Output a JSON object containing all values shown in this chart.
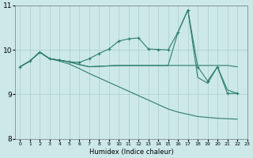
{
  "xlabel": "Humidex (Indice chaleur)",
  "background_color": "#cce8e8",
  "grid_color": "#aacfcf",
  "line_color": "#2e7d6e",
  "xlim": [
    -0.5,
    23
  ],
  "ylim": [
    8,
    11
  ],
  "yticks": [
    8,
    9,
    10,
    11
  ],
  "xticks": [
    0,
    1,
    2,
    3,
    4,
    5,
    6,
    7,
    8,
    9,
    10,
    11,
    12,
    13,
    14,
    15,
    16,
    17,
    18,
    19,
    20,
    21,
    22,
    23
  ],
  "line_a_x": [
    0,
    1,
    2,
    3,
    4,
    5,
    6,
    7,
    8,
    9,
    10,
    11,
    12,
    13,
    14,
    15,
    16,
    17,
    18,
    19,
    20,
    21,
    22
  ],
  "line_a_y": [
    9.62,
    9.75,
    9.95,
    9.8,
    9.77,
    9.73,
    9.72,
    9.8,
    9.92,
    10.02,
    10.2,
    10.25,
    10.27,
    10.02,
    10.01,
    10.0,
    10.4,
    10.9,
    9.62,
    9.3,
    9.62,
    9.02,
    9.02
  ],
  "line_b_x": [
    0,
    1,
    2,
    3,
    4,
    5,
    6,
    7,
    8,
    9,
    10,
    11,
    12,
    13,
    14,
    15,
    16,
    17,
    18,
    19,
    20,
    21,
    22
  ],
  "line_b_y": [
    9.62,
    9.75,
    9.95,
    9.8,
    9.77,
    9.73,
    9.67,
    9.62,
    9.63,
    9.64,
    9.65,
    9.65,
    9.65,
    9.65,
    9.65,
    9.65,
    9.65,
    9.65,
    9.65,
    9.65,
    9.65,
    9.65,
    9.62
  ],
  "line_c_x": [
    0,
    1,
    2,
    3,
    4,
    5,
    6,
    7,
    8,
    9,
    10,
    11,
    12,
    13,
    14,
    15,
    16,
    17,
    18,
    19,
    20,
    21,
    22
  ],
  "line_c_y": [
    9.62,
    9.75,
    9.95,
    9.8,
    9.75,
    9.68,
    9.58,
    9.47,
    9.37,
    9.27,
    9.17,
    9.07,
    8.97,
    8.87,
    8.77,
    8.67,
    8.6,
    8.55,
    8.5,
    8.48,
    8.46,
    8.45,
    8.44
  ],
  "line_d_x": [
    0,
    1,
    2,
    3,
    4,
    5,
    6,
    7,
    8,
    9,
    10,
    11,
    12,
    13,
    14,
    15,
    16,
    17,
    18,
    19,
    20,
    21,
    22
  ],
  "line_d_y": [
    9.62,
    9.75,
    9.95,
    9.8,
    9.77,
    9.73,
    9.67,
    9.62,
    9.63,
    9.64,
    9.65,
    9.65,
    9.65,
    9.65,
    9.65,
    9.65,
    10.4,
    10.9,
    9.38,
    9.25,
    9.62,
    9.1,
    9.02
  ]
}
